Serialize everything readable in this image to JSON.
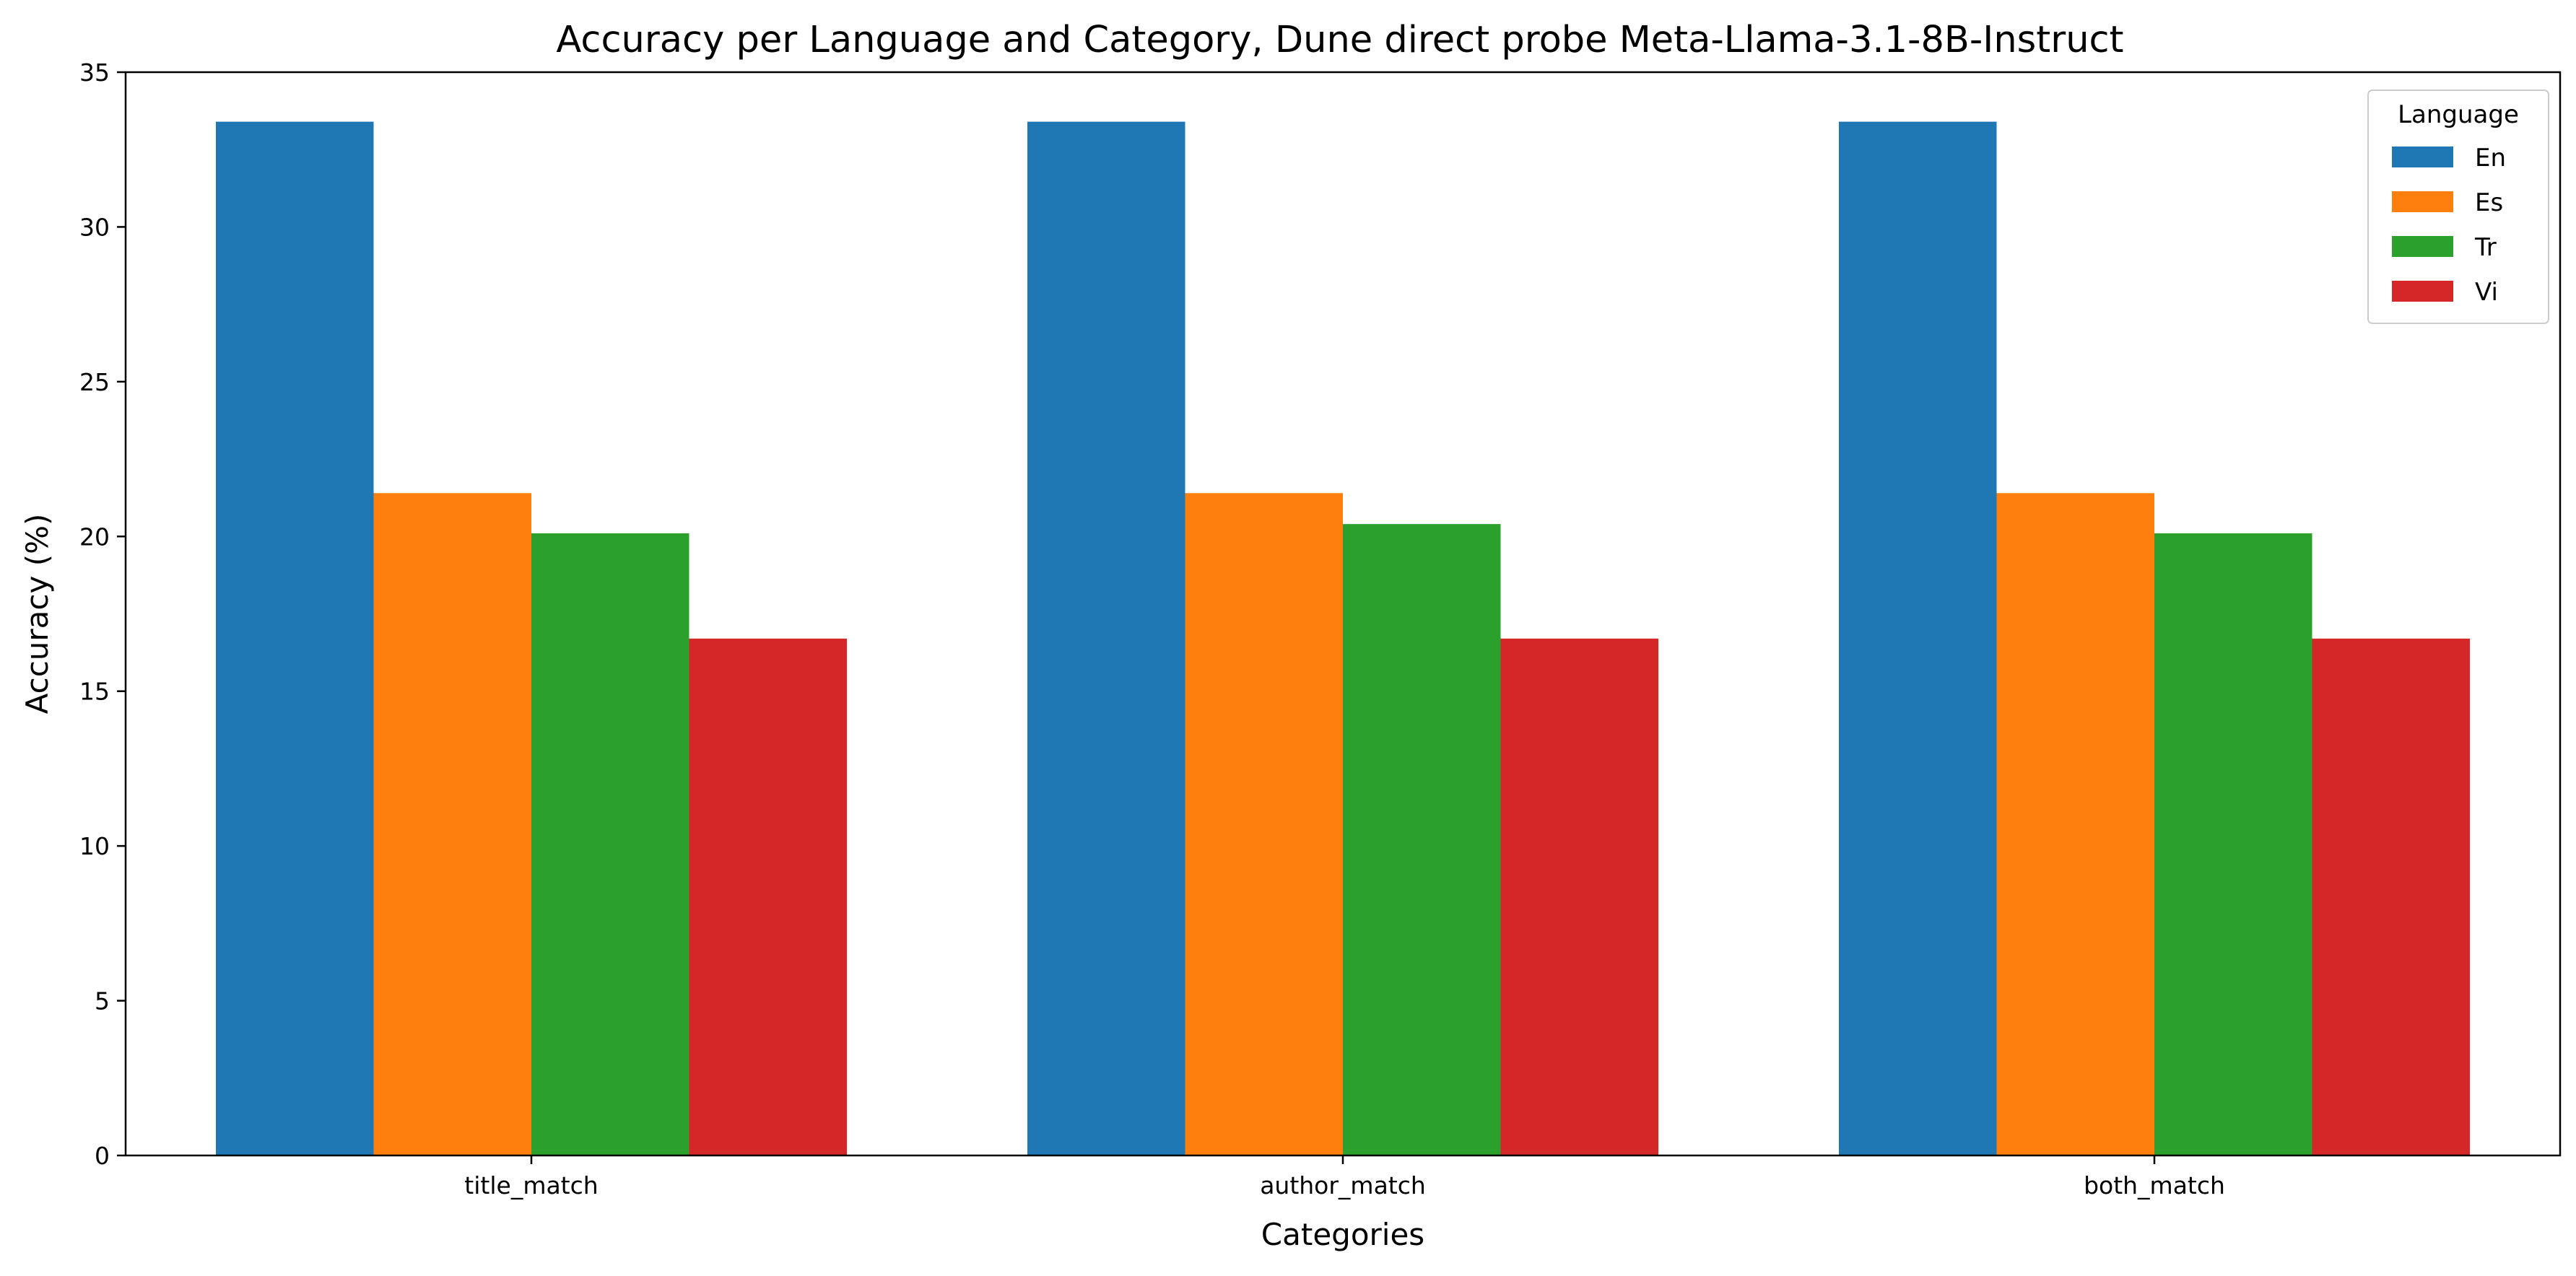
{
  "chart_data": {
    "type": "bar",
    "title": "Accuracy per Language and Category, Dune direct probe Meta-Llama-3.1-8B-Instruct",
    "xlabel": "Categories",
    "ylabel": "Accuracy (%)",
    "categories": [
      "title_match",
      "author_match",
      "both_match"
    ],
    "ylim": [
      0,
      35
    ],
    "yticks": [
      0,
      5,
      10,
      15,
      20,
      25,
      30,
      35
    ],
    "grid": false,
    "legend": {
      "title": "Language",
      "placement": "top-right"
    },
    "series": [
      {
        "name": "En",
        "color": "#1f77b4",
        "values": [
          33.4,
          33.4,
          33.4
        ]
      },
      {
        "name": "Es",
        "color": "#ff7f0e",
        "values": [
          21.4,
          21.4,
          21.4
        ]
      },
      {
        "name": "Tr",
        "color": "#2ca02c",
        "values": [
          20.1,
          20.4,
          20.1
        ]
      },
      {
        "name": "Vi",
        "color": "#d62728",
        "values": [
          16.7,
          16.7,
          16.7
        ]
      }
    ]
  }
}
